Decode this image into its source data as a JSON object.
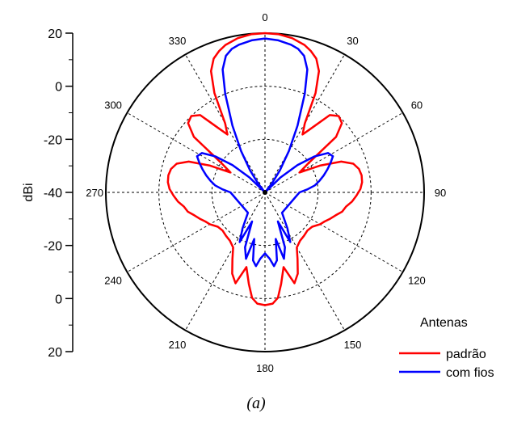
{
  "chart_data": {
    "type": "polar-line",
    "ylabel": "dBi",
    "radial_range": [
      -40,
      20
    ],
    "radial_ticks": [
      20,
      0,
      -20,
      -40,
      -20,
      0,
      20
    ],
    "radial_gridlines": [
      -20,
      0,
      20
    ],
    "angle_labels": [
      "0",
      "30",
      "60",
      "90",
      "120",
      "150",
      "180",
      "210",
      "240",
      "270",
      "300",
      "330"
    ],
    "angle_units": "degrees",
    "grid": true,
    "legend": {
      "title": "Antenas",
      "placement": "bottom-right"
    },
    "caption": "(a)",
    "series": [
      {
        "name": "padrão",
        "color": "#ff0000",
        "theta": [
          0,
          5,
          10,
          15,
          18,
          21,
          24,
          27,
          30,
          33,
          36,
          40,
          44,
          48,
          52,
          56,
          60,
          64,
          68,
          72,
          76,
          80,
          84,
          88,
          92,
          96,
          100,
          104,
          108,
          112,
          116,
          120,
          126,
          132,
          138,
          144,
          150,
          154,
          158,
          162,
          166,
          170,
          173,
          176,
          180,
          184,
          187,
          190,
          194,
          198,
          202,
          206,
          210,
          216,
          222,
          228,
          234,
          240,
          244,
          248,
          252,
          256,
          260,
          264,
          268,
          272,
          276,
          280,
          284,
          288,
          292,
          296,
          300,
          304,
          308,
          312,
          316,
          320,
          324,
          327,
          330,
          333,
          336,
          339,
          342,
          345,
          350,
          355,
          360
        ],
        "r": [
          20,
          19.8,
          19.0,
          17.5,
          16.0,
          14.0,
          10.0,
          2.0,
          -10.0,
          -14.0,
          -10.0,
          -2.0,
          0.0,
          -1.0,
          -6.0,
          -20.0,
          -25.0,
          -17.0,
          -9.0,
          -5.0,
          -3.5,
          -3.0,
          -3.2,
          -4.0,
          -5.5,
          -7.0,
          -9.0,
          -10.0,
          -12.0,
          -13.5,
          -15.0,
          -16.0,
          -18.0,
          -18.5,
          -18.0,
          -17.5,
          -16.0,
          -12.0,
          -7.0,
          -4.0,
          -11.0,
          -5.0,
          0.0,
          2.0,
          2.5,
          2.0,
          0.0,
          -5.0,
          -11.0,
          -4.0,
          -7.0,
          -12.0,
          -16.0,
          -17.5,
          -18.0,
          -18.5,
          -18.0,
          -16.0,
          -15.0,
          -13.5,
          -12.0,
          -10.0,
          -9.0,
          -7.0,
          -5.5,
          -4.0,
          -3.2,
          -3.0,
          -3.5,
          -5.0,
          -9.0,
          -17.0,
          -25.0,
          -20.0,
          -6.0,
          -1.0,
          0.0,
          -2.0,
          -10.0,
          -14.0,
          -10.0,
          2.0,
          10.0,
          14.0,
          16.0,
          17.5,
          19.0,
          19.8,
          20
        ]
      },
      {
        "name": "com fios",
        "color": "#0000ff",
        "theta": [
          0,
          5,
          10,
          13,
          16,
          19,
          22,
          26,
          30,
          34,
          38,
          42,
          46,
          50,
          54,
          58,
          62,
          66,
          70,
          74,
          78,
          82,
          86,
          90,
          140,
          148,
          153,
          156,
          160,
          164,
          167,
          170,
          173,
          176,
          180,
          184,
          187,
          190,
          193,
          196,
          200,
          204,
          207,
          212,
          220,
          270,
          274,
          278,
          282,
          286,
          290,
          294,
          298,
          302,
          306,
          310,
          314,
          318,
          322,
          326,
          330,
          334,
          338,
          341,
          344,
          347,
          350,
          355,
          360
        ],
        "r": [
          18.0,
          17.5,
          16.5,
          15.5,
          13.5,
          9.0,
          0.0,
          -12.0,
          -22.0,
          -30.0,
          -36.0,
          -40.0,
          -32.0,
          -24.0,
          -17.0,
          -12.0,
          -11.0,
          -13.0,
          -15.0,
          -17.0,
          -19.0,
          -21.0,
          -24.0,
          -27.0,
          -30.0,
          -24.0,
          -19.0,
          -28.0,
          -18.0,
          -14.0,
          -22.0,
          -14.0,
          -12.0,
          -15.0,
          -17.0,
          -15.0,
          -12.0,
          -14.0,
          -22.0,
          -14.0,
          -18.0,
          -28.0,
          -19.0,
          -24.0,
          -30.0,
          -27.0,
          -24.0,
          -21.0,
          -19.0,
          -17.0,
          -15.0,
          -13.0,
          -11.0,
          -12.0,
          -17.0,
          -24.0,
          -32.0,
          -40.0,
          -36.0,
          -30.0,
          -22.0,
          -12.0,
          0.0,
          9.0,
          13.5,
          15.5,
          16.5,
          17.5,
          18.0
        ]
      }
    ]
  }
}
